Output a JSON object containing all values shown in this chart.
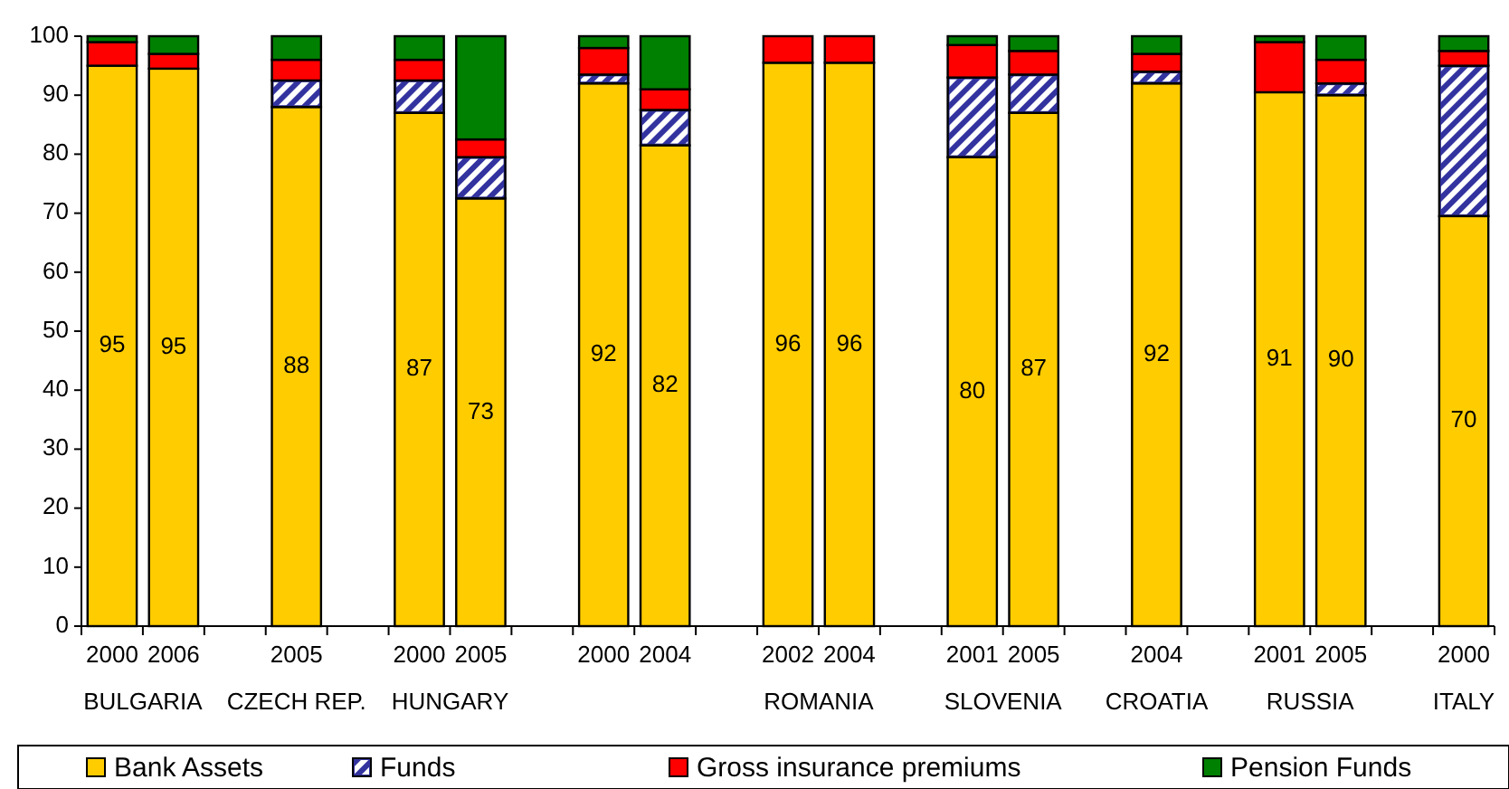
{
  "chart_data": {
    "type": "bar",
    "stacked": true,
    "categories": [
      "2000",
      "2006",
      null,
      "2005",
      null,
      "2000",
      "2005",
      null,
      "2000",
      "2004",
      null,
      "2002",
      "2004",
      null,
      "2001",
      "2005",
      null,
      "2004",
      null,
      "2001",
      "2005",
      null,
      "2000"
    ],
    "series": [
      {
        "name": "Bank Assets",
        "color": "#ffcc00",
        "values": [
          95,
          94.5,
          null,
          88,
          null,
          87,
          72.5,
          null,
          92,
          81.5,
          null,
          95.5,
          95.5,
          null,
          79.5,
          87,
          null,
          92,
          null,
          90.5,
          90,
          null,
          69.5
        ],
        "value_labels": [
          "95",
          "95",
          null,
          "88",
          null,
          "87",
          "73",
          null,
          "92",
          "82",
          null,
          "96",
          "96",
          null,
          "80",
          "87",
          null,
          "92",
          null,
          "91",
          "90",
          null,
          "70"
        ]
      },
      {
        "name": "Funds",
        "color": "#3333a0",
        "values": [
          0,
          0,
          null,
          4.5,
          null,
          5.5,
          7,
          null,
          1.5,
          6,
          null,
          0,
          0,
          null,
          13.5,
          6.5,
          null,
          2,
          null,
          0,
          2,
          null,
          25.5
        ]
      },
      {
        "name": "Gross insurance premiums",
        "color": "#ff0000",
        "values": [
          4,
          2.5,
          null,
          3.5,
          null,
          3.5,
          3,
          null,
          4.5,
          3.5,
          null,
          4.5,
          4.5,
          null,
          5.5,
          4,
          null,
          3,
          null,
          8.5,
          4,
          null,
          2.5
        ]
      },
      {
        "name": "Pension Funds",
        "color": "#008000",
        "values": [
          1,
          3,
          null,
          4,
          null,
          4,
          17.5,
          null,
          2,
          9,
          null,
          0,
          0,
          null,
          1.5,
          2.5,
          null,
          3,
          null,
          1,
          4,
          null,
          2.5
        ]
      }
    ],
    "ylim": [
      0,
      100
    ],
    "yticks": [
      0,
      10,
      20,
      30,
      40,
      50,
      60,
      70,
      80,
      90,
      100
    ],
    "grid": false,
    "legend": "bottom",
    "annotations": [
      "BULGARIA",
      "CZECH REP.",
      "HUNGARY",
      "ROMANIA",
      "SLOVENIA",
      "CROATIA",
      "RUSSIA",
      "ITALY"
    ]
  }
}
